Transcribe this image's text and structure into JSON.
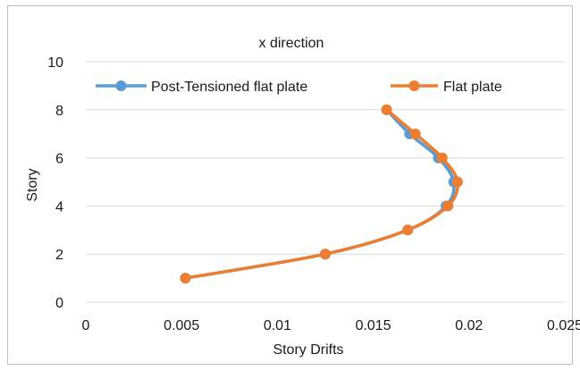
{
  "chart_data": {
    "type": "line",
    "title": "x direction",
    "xlabel": "Story Drifts",
    "ylabel": "Story",
    "xlim": [
      0,
      0.025
    ],
    "ylim": [
      0,
      10
    ],
    "x_ticks": [
      "0",
      "0.005",
      "0.01",
      "0.015",
      "0.02",
      "0.025"
    ],
    "y_ticks": [
      "0",
      "2",
      "4",
      "6",
      "8",
      "10"
    ],
    "grid": "horizontal",
    "legend_position": "top",
    "series": [
      {
        "name": "Post-Tensioned flat plate",
        "color": "#5b9bd5",
        "points": [
          {
            "x": 0.0052,
            "y": 1
          },
          {
            "x": 0.0125,
            "y": 2
          },
          {
            "x": 0.0168,
            "y": 3
          },
          {
            "x": 0.0188,
            "y": 4
          },
          {
            "x": 0.0192,
            "y": 5
          },
          {
            "x": 0.0184,
            "y": 6
          },
          {
            "x": 0.0169,
            "y": 7
          },
          {
            "x": 0.0157,
            "y": 8
          }
        ]
      },
      {
        "name": "Flat plate",
        "color": "#ed7d31",
        "points": [
          {
            "x": 0.0052,
            "y": 1
          },
          {
            "x": 0.0125,
            "y": 2
          },
          {
            "x": 0.0168,
            "y": 3
          },
          {
            "x": 0.0189,
            "y": 4
          },
          {
            "x": 0.0194,
            "y": 5
          },
          {
            "x": 0.0186,
            "y": 6
          },
          {
            "x": 0.0172,
            "y": 7
          },
          {
            "x": 0.0157,
            "y": 8
          }
        ]
      }
    ]
  }
}
